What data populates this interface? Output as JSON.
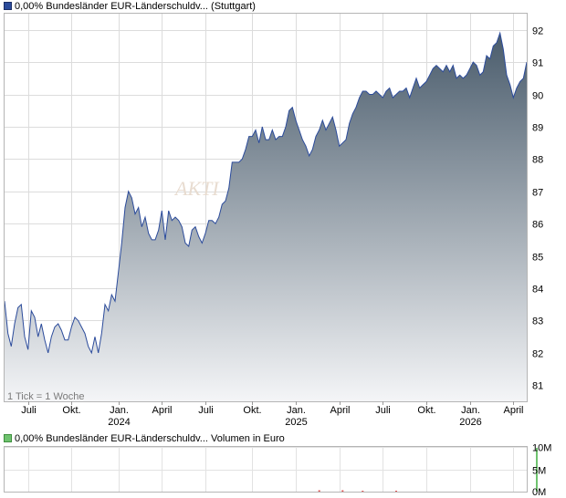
{
  "legend_main": {
    "color": "#2b4b9b",
    "label": "0,00% Bundesländer EUR-Länderschuldv...",
    "exchange": "(Stuttgart)"
  },
  "legend_volume": {
    "color": "#6fc36f",
    "label": "0,00% Bundesländer EUR-Länderschuldv... Volumen in Euro"
  },
  "tick_note": "1 Tick = 1 Woche",
  "watermark": "AKTI",
  "chart_data": [
    {
      "type": "area",
      "ylim": [
        80.5,
        92.5
      ],
      "y_ticks": [
        81,
        82,
        83,
        84,
        85,
        86,
        87,
        88,
        89,
        90,
        91,
        92
      ],
      "x_ticks": [
        {
          "label": "Juli",
          "year": "",
          "week": 7
        },
        {
          "label": "Okt.",
          "year": "",
          "week": 20
        },
        {
          "label": "Jan.",
          "year": "2024",
          "week": 34
        },
        {
          "label": "April",
          "year": "",
          "week": 47
        },
        {
          "label": "Juli",
          "year": "",
          "week": 60
        },
        {
          "label": "Okt.",
          "year": "",
          "week": 74
        },
        {
          "label": "Jan.",
          "year": "2025",
          "week": 87
        },
        {
          "label": "April",
          "year": "",
          "week": 100
        },
        {
          "label": "Juli",
          "year": "",
          "week": 113
        },
        {
          "label": "Okt.",
          "year": "",
          "week": 126
        },
        {
          "label": "Jan.",
          "year": "2026",
          "week": 139
        },
        {
          "label": "April",
          "year": "",
          "week": 152
        }
      ],
      "grid": true,
      "line_color": "#2b4b9b",
      "fill_top": "#4a5c6c",
      "fill_bottom": "#f4f5f7",
      "series": [
        {
          "values": [
            83.6,
            82.6,
            82.2,
            82.9,
            83.4,
            83.5,
            82.5,
            82.1,
            83.3,
            83.1,
            82.5,
            82.9,
            82.4,
            82.0,
            82.5,
            82.8,
            82.9,
            82.7,
            82.4,
            82.4,
            82.8,
            83.1,
            83.0,
            82.8,
            82.6,
            82.2,
            82.0,
            82.5,
            82.0,
            82.6,
            83.5,
            83.3,
            83.8,
            83.6,
            84.5,
            85.4,
            86.5,
            87.0,
            86.8,
            86.3,
            86.5,
            85.9,
            86.2,
            85.7,
            85.5,
            85.5,
            85.8,
            86.4,
            85.5,
            86.4,
            86.1,
            86.2,
            86.1,
            85.9,
            85.4,
            85.3,
            85.8,
            85.9,
            85.6,
            85.4,
            85.7,
            86.1,
            86.1,
            86.0,
            86.2,
            86.6,
            86.7,
            87.1,
            87.9,
            87.9,
            87.9,
            88.0,
            88.3,
            88.7,
            88.7,
            88.9,
            88.5,
            89.0,
            88.6,
            88.6,
            88.9,
            88.6,
            88.7,
            88.7,
            89.0,
            89.5,
            89.6,
            89.2,
            88.9,
            88.6,
            88.4,
            88.1,
            88.3,
            88.7,
            88.9,
            89.2,
            88.9,
            89.1,
            89.3,
            88.9,
            88.4,
            88.5,
            88.6,
            89.1,
            89.4,
            89.6,
            89.9,
            90.1,
            90.1,
            90.0,
            90.0,
            90.1,
            90.0,
            89.9,
            90.1,
            90.2,
            89.9,
            90.0,
            90.1,
            90.1,
            90.2,
            89.9,
            90.2,
            90.5,
            90.2,
            90.3,
            90.4,
            90.6,
            90.8,
            90.9,
            90.8,
            90.7,
            90.9,
            90.7,
            90.9,
            90.5,
            90.6,
            90.5,
            90.6,
            90.8,
            91.0,
            90.9,
            90.6,
            90.7,
            91.2,
            91.1,
            91.5,
            91.6,
            91.9,
            91.4,
            90.6,
            90.3,
            89.9,
            90.2,
            90.4,
            90.5,
            91.0
          ]
        }
      ]
    },
    {
      "type": "bar",
      "ylim": [
        0,
        10
      ],
      "y_ticks": [
        {
          "value": 0,
          "label": "0M"
        },
        {
          "value": 5,
          "label": "5M"
        },
        {
          "value": 10,
          "label": "10M"
        }
      ],
      "bar_color": "#6fc36f",
      "accent_color": "#e05050",
      "bars": [
        {
          "week": 159,
          "value": 9.8,
          "color": "green"
        },
        {
          "week": 94,
          "value": 0.3,
          "color": "red"
        },
        {
          "week": 101,
          "value": 0.3,
          "color": "red"
        },
        {
          "week": 107,
          "value": 0.2,
          "color": "red"
        },
        {
          "week": 117,
          "value": 0.2,
          "color": "red"
        }
      ]
    }
  ]
}
